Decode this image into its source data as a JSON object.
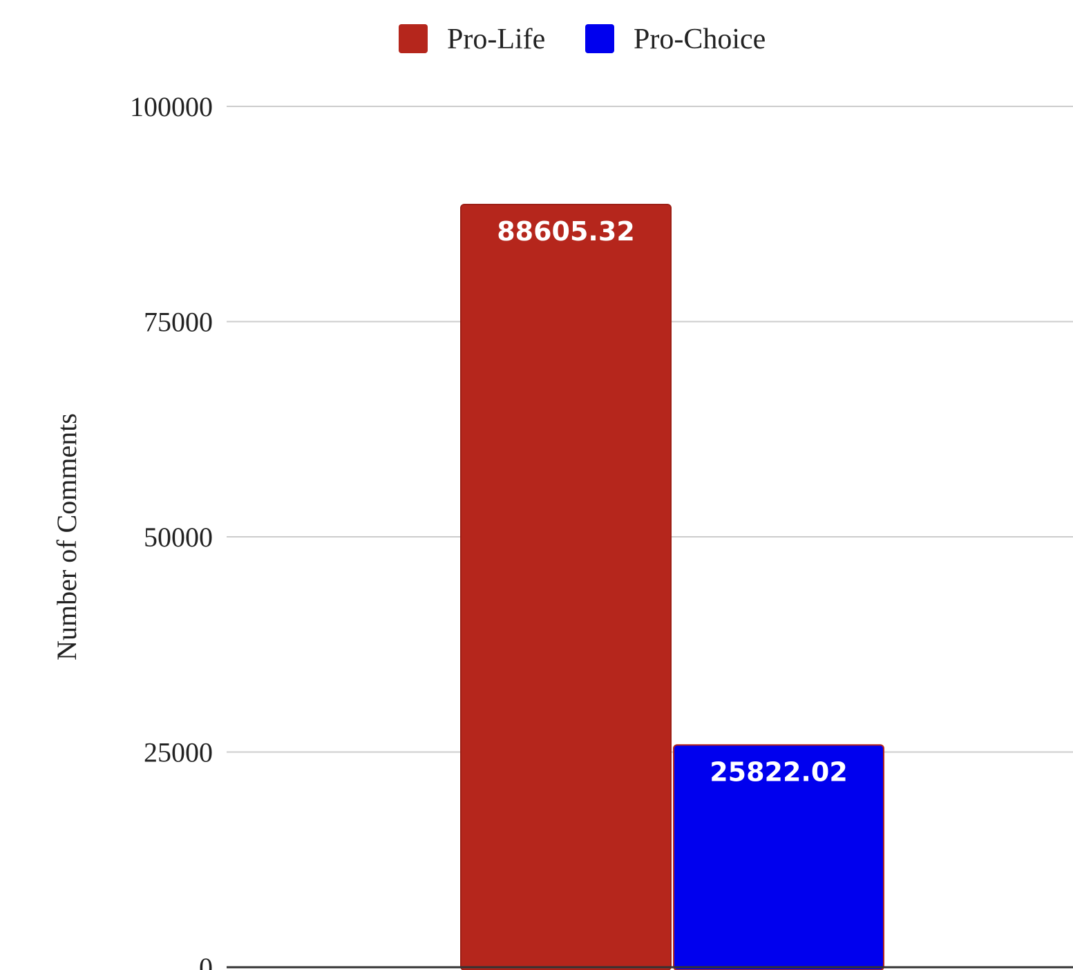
{
  "chart_data": {
    "type": "bar",
    "categories": [
      ""
    ],
    "series": [
      {
        "name": "Pro-Life",
        "values": [
          88605.32
        ],
        "color": "#b5261c"
      },
      {
        "name": "Pro-Choice",
        "values": [
          25822.02
        ],
        "color": "#0000ee"
      }
    ],
    "data_labels": [
      "88605.32",
      "25822.02"
    ],
    "title": "",
    "xlabel": "",
    "ylabel": "Number of Comments",
    "ylim": [
      0,
      100000
    ],
    "yticks": [
      0,
      25000,
      50000,
      75000,
      100000
    ],
    "grid": true,
    "legend_position": "top"
  }
}
